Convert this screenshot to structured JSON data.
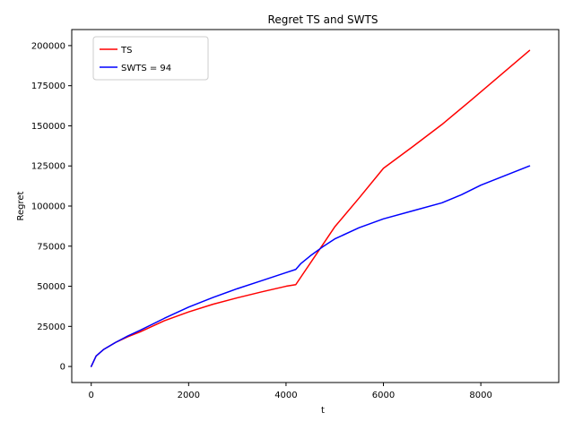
{
  "chart_data": {
    "type": "line",
    "title": "Regret TS and SWTS",
    "xlabel": "t",
    "ylabel": "Regret",
    "xlim": [
      -400,
      9600
    ],
    "ylim": [
      -10000,
      210000
    ],
    "xticks": [
      0,
      2000,
      4000,
      6000,
      8000
    ],
    "yticks": [
      0,
      25000,
      50000,
      75000,
      100000,
      125000,
      150000,
      175000,
      200000
    ],
    "grid": false,
    "legend_position": "top-left",
    "series": [
      {
        "name": "TS",
        "color": "#ff0000",
        "x": [
          0,
          100,
          250,
          500,
          750,
          1000,
          1500,
          2000,
          2500,
          3000,
          3500,
          4000,
          4200,
          4400,
          4600,
          4800,
          5000,
          5500,
          6000,
          6600,
          7200,
          7800,
          8400,
          9000
        ],
        "y": [
          0,
          6500,
          10500,
          15000,
          18500,
          21500,
          28500,
          34000,
          38800,
          42800,
          46500,
          50000,
          51000,
          60000,
          69000,
          78000,
          87000,
          105000,
          123500,
          137000,
          150800,
          166000,
          181500,
          197000
        ]
      },
      {
        "name": "SWTS = 94",
        "color": "#0000ff",
        "x": [
          0,
          100,
          250,
          500,
          750,
          1000,
          1500,
          2000,
          2500,
          3000,
          3500,
          4000,
          4200,
          4300,
          4500,
          4750,
          5000,
          5500,
          6000,
          6600,
          7200,
          7600,
          8000,
          8500,
          9000
        ],
        "y": [
          0,
          6500,
          10500,
          15000,
          19000,
          22500,
          30000,
          37000,
          43000,
          48500,
          53500,
          58500,
          60500,
          64000,
          69000,
          74500,
          79500,
          86500,
          92000,
          97000,
          102000,
          107000,
          113000,
          119000,
          125000
        ]
      }
    ]
  }
}
